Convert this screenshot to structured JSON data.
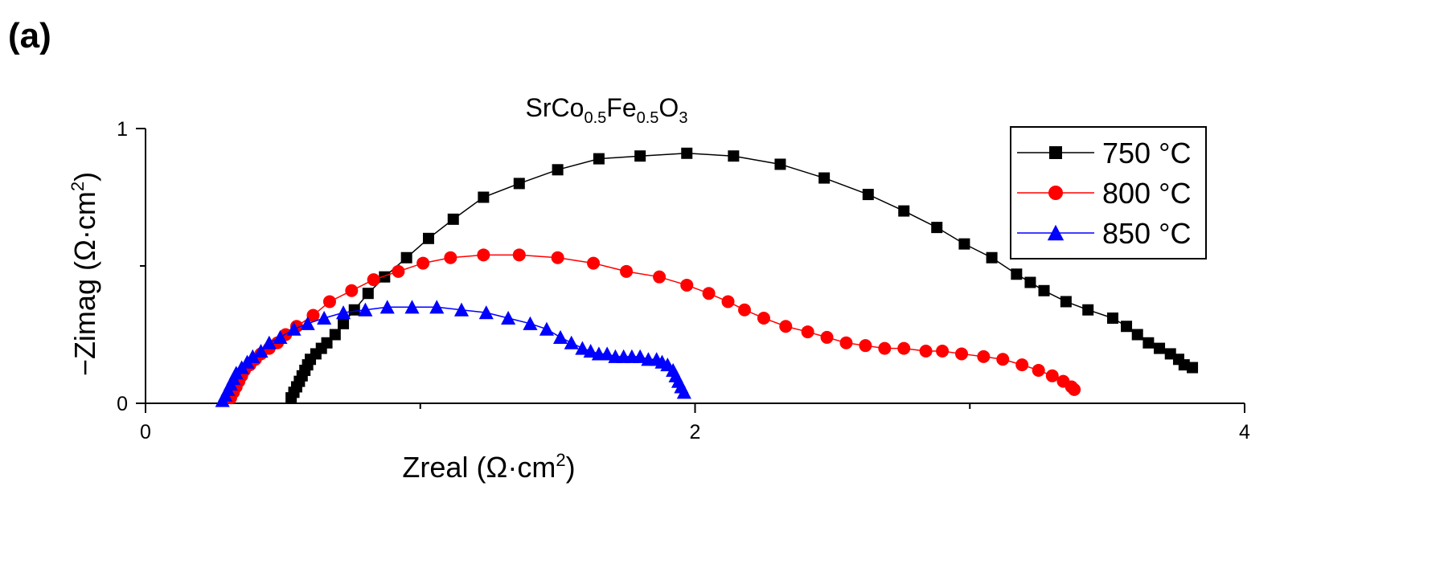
{
  "panel_label": "(a)",
  "chart_data": {
    "type": "scatter",
    "title": "SrCo0.5Fe0.5O3",
    "title_parts": [
      {
        "text": "SrCo",
        "sub": false
      },
      {
        "text": "0.5",
        "sub": true
      },
      {
        "text": "Fe",
        "sub": false
      },
      {
        "text": "0.5",
        "sub": true
      },
      {
        "text": "O",
        "sub": false
      },
      {
        "text": "3",
        "sub": true
      }
    ],
    "xlabel": "Zreal (Ω·cm²)",
    "xlabel_main": "Zreal (Ω·cm",
    "xlabel_sup": "2",
    "xlabel_end": ")",
    "ylabel": "−Zimag (Ω·cm²)",
    "ylabel_main": "−Zimag (Ω·cm",
    "ylabel_sup": "2",
    "ylabel_end": ")",
    "xlim": [
      0,
      4
    ],
    "ylim": [
      0,
      1
    ],
    "xticks": [
      0,
      2,
      4
    ],
    "xtick_labels": [
      "0",
      "2",
      "4"
    ],
    "xminor": [
      1,
      3
    ],
    "yticks": [
      0,
      1
    ],
    "ytick_labels": [
      "0",
      "1"
    ],
    "yminor": [
      0.5
    ],
    "legend_position": "top-right",
    "series": [
      {
        "name": "750 °C",
        "color": "#000000",
        "marker": "square",
        "x": [
          0.53,
          0.54,
          0.55,
          0.56,
          0.57,
          0.58,
          0.59,
          0.6,
          0.62,
          0.64,
          0.66,
          0.69,
          0.72,
          0.76,
          0.81,
          0.87,
          0.95,
          1.03,
          1.12,
          1.23,
          1.36,
          1.5,
          1.65,
          1.8,
          1.97,
          2.14,
          2.31,
          2.47,
          2.63,
          2.76,
          2.88,
          2.98,
          3.08,
          3.17,
          3.22,
          3.27,
          3.35,
          3.43,
          3.52,
          3.57,
          3.61,
          3.65,
          3.69,
          3.73,
          3.76,
          3.78,
          3.81
        ],
        "y": [
          0.02,
          0.04,
          0.06,
          0.08,
          0.1,
          0.12,
          0.14,
          0.16,
          0.18,
          0.2,
          0.22,
          0.25,
          0.29,
          0.34,
          0.4,
          0.46,
          0.53,
          0.6,
          0.67,
          0.75,
          0.8,
          0.85,
          0.89,
          0.9,
          0.91,
          0.9,
          0.87,
          0.82,
          0.76,
          0.7,
          0.64,
          0.58,
          0.53,
          0.47,
          0.44,
          0.41,
          0.37,
          0.34,
          0.31,
          0.28,
          0.25,
          0.22,
          0.2,
          0.18,
          0.16,
          0.14,
          0.13
        ]
      },
      {
        "name": "800 °C",
        "color": "#ff0000",
        "marker": "circle",
        "x": [
          0.31,
          0.32,
          0.33,
          0.34,
          0.35,
          0.36,
          0.38,
          0.4,
          0.42,
          0.45,
          0.48,
          0.51,
          0.55,
          0.61,
          0.67,
          0.75,
          0.83,
          0.92,
          1.01,
          1.11,
          1.23,
          1.36,
          1.5,
          1.63,
          1.75,
          1.87,
          1.97,
          2.05,
          2.12,
          2.18,
          2.25,
          2.33,
          2.41,
          2.48,
          2.55,
          2.62,
          2.69,
          2.76,
          2.84,
          2.9,
          2.97,
          3.05,
          3.12,
          3.19,
          3.25,
          3.3,
          3.34,
          3.37,
          3.38
        ],
        "y": [
          0.02,
          0.04,
          0.06,
          0.08,
          0.1,
          0.12,
          0.14,
          0.16,
          0.18,
          0.2,
          0.22,
          0.25,
          0.28,
          0.32,
          0.37,
          0.41,
          0.45,
          0.48,
          0.51,
          0.53,
          0.54,
          0.54,
          0.53,
          0.51,
          0.48,
          0.46,
          0.43,
          0.4,
          0.37,
          0.34,
          0.31,
          0.28,
          0.26,
          0.24,
          0.22,
          0.21,
          0.2,
          0.2,
          0.19,
          0.19,
          0.18,
          0.17,
          0.16,
          0.14,
          0.12,
          0.1,
          0.08,
          0.06,
          0.05
        ]
      },
      {
        "name": "850 °C",
        "color": "#0000ff",
        "marker": "triangle",
        "x": [
          0.28,
          0.29,
          0.3,
          0.31,
          0.32,
          0.33,
          0.35,
          0.37,
          0.39,
          0.42,
          0.45,
          0.49,
          0.54,
          0.59,
          0.65,
          0.72,
          0.8,
          0.88,
          0.97,
          1.06,
          1.15,
          1.24,
          1.32,
          1.4,
          1.46,
          1.51,
          1.55,
          1.59,
          1.62,
          1.65,
          1.68,
          1.71,
          1.74,
          1.77,
          1.8,
          1.83,
          1.86,
          1.88,
          1.9,
          1.92,
          1.93,
          1.94,
          1.95,
          1.96
        ],
        "y": [
          0.01,
          0.03,
          0.05,
          0.07,
          0.09,
          0.11,
          0.13,
          0.15,
          0.17,
          0.19,
          0.22,
          0.24,
          0.27,
          0.29,
          0.31,
          0.33,
          0.34,
          0.35,
          0.35,
          0.35,
          0.34,
          0.33,
          0.31,
          0.29,
          0.27,
          0.24,
          0.22,
          0.2,
          0.19,
          0.18,
          0.18,
          0.17,
          0.17,
          0.17,
          0.17,
          0.16,
          0.16,
          0.15,
          0.14,
          0.12,
          0.1,
          0.08,
          0.06,
          0.04
        ]
      }
    ]
  }
}
